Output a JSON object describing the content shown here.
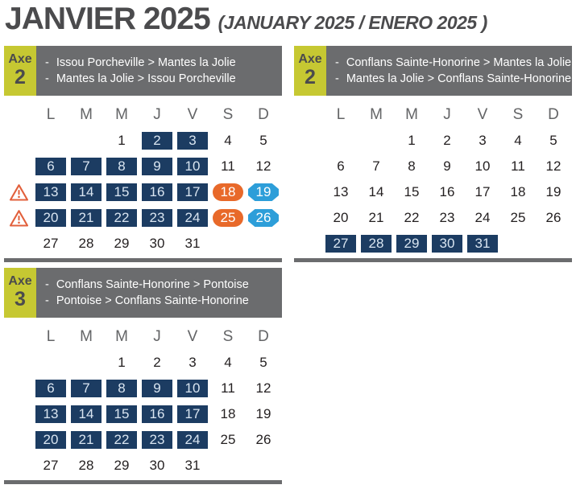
{
  "title": {
    "main": "JANVIER 2025",
    "sub": "(JANUARY 2025 / ENERO 2025 )"
  },
  "weekday_headers": [
    "L",
    "M",
    "M",
    "J",
    "V",
    "S",
    "D"
  ],
  "route_bullet": "-",
  "colors": {
    "accent_yellow": "#c6c832",
    "panel_gray": "#6b6c6e",
    "navy_day": "#1c3c62",
    "orange_day": "#e8692a",
    "blue_day": "#2d9ed9",
    "warning_orange": "#e2603c",
    "title_gray": "#4b4b4d"
  },
  "legend": {
    "navy_meaning": "highlighted-workday",
    "orange_meaning": "highlighted-saturday",
    "blue_meaning": "highlighted-sunday"
  },
  "blocks": [
    {
      "axe_label": "Axe",
      "axe_number": "2",
      "routes": [
        "Issou Porcheville > Mantes la Jolie",
        "Mantes la Jolie > Issou Porcheville"
      ],
      "weeks": [
        {
          "warning": false,
          "days": [
            null,
            null,
            {
              "n": 1,
              "s": "plain"
            },
            {
              "n": 2,
              "s": "navy"
            },
            {
              "n": 3,
              "s": "navy"
            },
            {
              "n": 4,
              "s": "plain"
            },
            {
              "n": 5,
              "s": "plain"
            }
          ]
        },
        {
          "warning": false,
          "days": [
            {
              "n": 6,
              "s": "navy"
            },
            {
              "n": 7,
              "s": "navy"
            },
            {
              "n": 8,
              "s": "navy"
            },
            {
              "n": 9,
              "s": "navy"
            },
            {
              "n": 10,
              "s": "navy"
            },
            {
              "n": 11,
              "s": "plain"
            },
            {
              "n": 12,
              "s": "plain"
            }
          ]
        },
        {
          "warning": true,
          "days": [
            {
              "n": 13,
              "s": "navy"
            },
            {
              "n": 14,
              "s": "navy"
            },
            {
              "n": 15,
              "s": "navy"
            },
            {
              "n": 16,
              "s": "navy"
            },
            {
              "n": 17,
              "s": "navy"
            },
            {
              "n": 18,
              "s": "orange"
            },
            {
              "n": 19,
              "s": "blue"
            }
          ]
        },
        {
          "warning": true,
          "days": [
            {
              "n": 20,
              "s": "navy"
            },
            {
              "n": 21,
              "s": "navy"
            },
            {
              "n": 22,
              "s": "navy"
            },
            {
              "n": 23,
              "s": "navy"
            },
            {
              "n": 24,
              "s": "navy"
            },
            {
              "n": 25,
              "s": "orange"
            },
            {
              "n": 26,
              "s": "blue"
            }
          ]
        },
        {
          "warning": false,
          "days": [
            {
              "n": 27,
              "s": "plain"
            },
            {
              "n": 28,
              "s": "plain"
            },
            {
              "n": 29,
              "s": "plain"
            },
            {
              "n": 30,
              "s": "plain"
            },
            {
              "n": 31,
              "s": "plain"
            },
            null,
            null
          ]
        }
      ]
    },
    {
      "axe_label": "Axe",
      "axe_number": "2",
      "routes": [
        "Conflans Sainte-Honorine > Mantes la Jolie",
        "Mantes la Jolie > Conflans Sainte-Honorine"
      ],
      "weeks": [
        {
          "warning": false,
          "days": [
            null,
            null,
            {
              "n": 1,
              "s": "plain"
            },
            {
              "n": 2,
              "s": "plain"
            },
            {
              "n": 3,
              "s": "plain"
            },
            {
              "n": 4,
              "s": "plain"
            },
            {
              "n": 5,
              "s": "plain"
            }
          ]
        },
        {
          "warning": false,
          "days": [
            {
              "n": 6,
              "s": "plain"
            },
            {
              "n": 7,
              "s": "plain"
            },
            {
              "n": 8,
              "s": "plain"
            },
            {
              "n": 9,
              "s": "plain"
            },
            {
              "n": 10,
              "s": "plain"
            },
            {
              "n": 11,
              "s": "plain"
            },
            {
              "n": 12,
              "s": "plain"
            }
          ]
        },
        {
          "warning": false,
          "days": [
            {
              "n": 13,
              "s": "plain"
            },
            {
              "n": 14,
              "s": "plain"
            },
            {
              "n": 15,
              "s": "plain"
            },
            {
              "n": 16,
              "s": "plain"
            },
            {
              "n": 17,
              "s": "plain"
            },
            {
              "n": 18,
              "s": "plain"
            },
            {
              "n": 19,
              "s": "plain"
            }
          ]
        },
        {
          "warning": false,
          "days": [
            {
              "n": 20,
              "s": "plain"
            },
            {
              "n": 21,
              "s": "plain"
            },
            {
              "n": 22,
              "s": "plain"
            },
            {
              "n": 23,
              "s": "plain"
            },
            {
              "n": 24,
              "s": "plain"
            },
            {
              "n": 25,
              "s": "plain"
            },
            {
              "n": 26,
              "s": "plain"
            }
          ]
        },
        {
          "warning": false,
          "days": [
            {
              "n": 27,
              "s": "navy"
            },
            {
              "n": 28,
              "s": "navy"
            },
            {
              "n": 29,
              "s": "navy"
            },
            {
              "n": 30,
              "s": "navy"
            },
            {
              "n": 31,
              "s": "navy"
            },
            null,
            null
          ]
        }
      ]
    },
    {
      "axe_label": "Axe",
      "axe_number": "3",
      "routes": [
        "Conflans Sainte-Honorine > Pontoise",
        "Pontoise > Conflans Sainte-Honorine"
      ],
      "weeks": [
        {
          "warning": false,
          "days": [
            null,
            null,
            {
              "n": 1,
              "s": "plain"
            },
            {
              "n": 2,
              "s": "plain"
            },
            {
              "n": 3,
              "s": "plain"
            },
            {
              "n": 4,
              "s": "plain"
            },
            {
              "n": 5,
              "s": "plain"
            }
          ]
        },
        {
          "warning": false,
          "days": [
            {
              "n": 6,
              "s": "navy"
            },
            {
              "n": 7,
              "s": "navy"
            },
            {
              "n": 8,
              "s": "navy"
            },
            {
              "n": 9,
              "s": "navy"
            },
            {
              "n": 10,
              "s": "navy"
            },
            {
              "n": 11,
              "s": "plain"
            },
            {
              "n": 12,
              "s": "plain"
            }
          ]
        },
        {
          "warning": false,
          "days": [
            {
              "n": 13,
              "s": "navy"
            },
            {
              "n": 14,
              "s": "navy"
            },
            {
              "n": 15,
              "s": "navy"
            },
            {
              "n": 16,
              "s": "navy"
            },
            {
              "n": 17,
              "s": "navy"
            },
            {
              "n": 18,
              "s": "plain"
            },
            {
              "n": 19,
              "s": "plain"
            }
          ]
        },
        {
          "warning": false,
          "days": [
            {
              "n": 20,
              "s": "navy"
            },
            {
              "n": 21,
              "s": "navy"
            },
            {
              "n": 22,
              "s": "navy"
            },
            {
              "n": 23,
              "s": "navy"
            },
            {
              "n": 24,
              "s": "navy"
            },
            {
              "n": 25,
              "s": "plain"
            },
            {
              "n": 26,
              "s": "plain"
            }
          ]
        },
        {
          "warning": false,
          "days": [
            {
              "n": 27,
              "s": "plain"
            },
            {
              "n": 28,
              "s": "plain"
            },
            {
              "n": 29,
              "s": "plain"
            },
            {
              "n": 30,
              "s": "plain"
            },
            {
              "n": 31,
              "s": "plain"
            },
            null,
            null
          ]
        }
      ]
    }
  ]
}
